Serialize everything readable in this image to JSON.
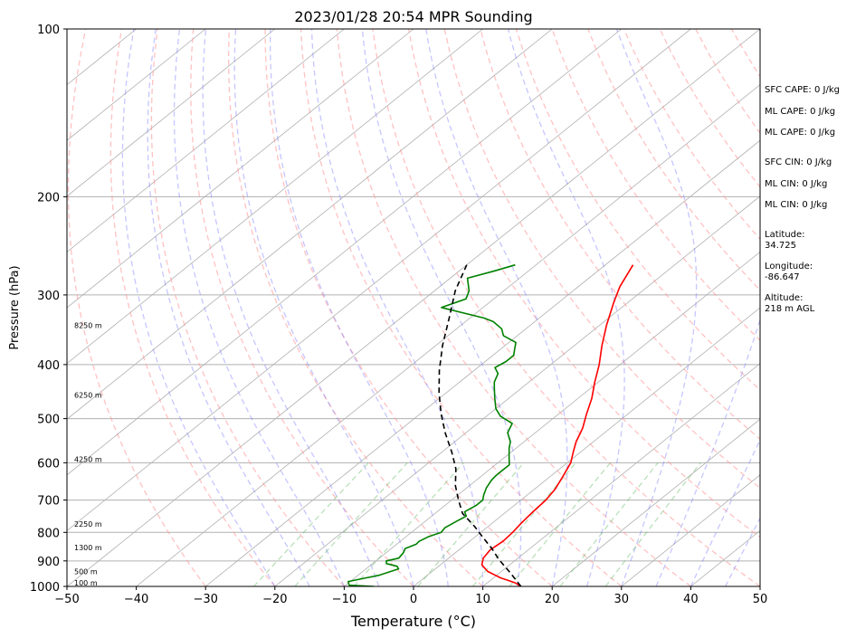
{
  "chart_data": {
    "type": "line",
    "title": "2023/01/28 20:54 MPR Sounding",
    "xlabel": "Temperature (°C)",
    "ylabel": "Pressure (hPa)",
    "xlim": [
      -50,
      50
    ],
    "ylim": [
      1000,
      100
    ],
    "y_scale": "log",
    "grid": true,
    "x_ticks": [
      "−50",
      "−40",
      "−30",
      "−20",
      "−10",
      "0",
      "10",
      "20",
      "30",
      "40",
      "50"
    ],
    "y_ticks": [
      {
        "p": 100,
        "label": "100"
      },
      {
        "p": 200,
        "label": "200"
      },
      {
        "p": 300,
        "label": "300"
      },
      {
        "p": 400,
        "label": "400"
      },
      {
        "p": 500,
        "label": "500"
      },
      {
        "p": 600,
        "label": "600"
      },
      {
        "p": 700,
        "label": "700"
      },
      {
        "p": 800,
        "label": "800"
      },
      {
        "p": 900,
        "label": "900"
      },
      {
        "p": 1000,
        "label": "1000"
      }
    ],
    "height_labels": [
      {
        "p": 1000,
        "label": "100 m"
      },
      {
        "p": 955,
        "label": "500 m"
      },
      {
        "p": 865,
        "label": "1300 m"
      },
      {
        "p": 785,
        "label": "2250 m"
      },
      {
        "p": 600,
        "label": "4250 m"
      },
      {
        "p": 460,
        "label": "6250 m"
      },
      {
        "p": 345,
        "label": "8250 m"
      }
    ],
    "series": [
      {
        "color": "#ff0000",
        "style": "solid",
        "points": [
          [
            15.5,
            1000
          ],
          [
            14,
            985
          ],
          [
            11,
            965
          ],
          [
            8,
            940
          ],
          [
            6,
            915
          ],
          [
            5,
            890
          ],
          [
            4.5,
            860
          ],
          [
            4.8,
            830
          ],
          [
            4.6,
            800
          ],
          [
            4.2,
            770
          ],
          [
            3.9,
            740
          ],
          [
            3.6,
            700
          ],
          [
            3,
            670
          ],
          [
            2,
            640
          ],
          [
            0.5,
            600
          ],
          [
            -1,
            575
          ],
          [
            -2.5,
            550
          ],
          [
            -4,
            520
          ],
          [
            -6,
            490
          ],
          [
            -8,
            460
          ],
          [
            -10.5,
            430
          ],
          [
            -13,
            400
          ],
          [
            -16,
            370
          ],
          [
            -19,
            340
          ],
          [
            -22,
            310
          ],
          [
            -24,
            290
          ],
          [
            -26,
            265
          ]
        ]
      },
      {
        "color": "#008000",
        "style": "solid",
        "points": [
          [
            -5.7,
            1000
          ],
          [
            -9.5,
            995
          ],
          [
            -10.3,
            980
          ],
          [
            -9,
            970
          ],
          [
            -7,
            955
          ],
          [
            -5.3,
            930
          ],
          [
            -6,
            920
          ],
          [
            -8,
            910
          ],
          [
            -8.5,
            900
          ],
          [
            -7.2,
            890
          ],
          [
            -7.5,
            870
          ],
          [
            -8,
            855
          ],
          [
            -7.2,
            840
          ],
          [
            -7.3,
            830
          ],
          [
            -6.8,
            815
          ],
          [
            -5.7,
            800
          ],
          [
            -6,
            785
          ],
          [
            -5.5,
            765
          ],
          [
            -5,
            748
          ],
          [
            -6,
            735
          ],
          [
            -5.5,
            715
          ],
          [
            -5.5,
            700
          ],
          [
            -6.3,
            685
          ],
          [
            -7.2,
            665
          ],
          [
            -7.8,
            645
          ],
          [
            -8,
            632
          ],
          [
            -8,
            620
          ],
          [
            -8,
            605
          ],
          [
            -9.5,
            585
          ],
          [
            -11,
            565
          ],
          [
            -12,
            550
          ],
          [
            -14,
            530
          ],
          [
            -15,
            510
          ],
          [
            -18,
            495
          ],
          [
            -20,
            480
          ],
          [
            -22,
            460
          ],
          [
            -24,
            440
          ],
          [
            -25,
            430
          ],
          [
            -26,
            415
          ],
          [
            -27.5,
            405
          ],
          [
            -27,
            395
          ],
          [
            -27,
            385
          ],
          [
            -28,
            375
          ],
          [
            -29,
            365
          ],
          [
            -32,
            355
          ],
          [
            -33.5,
            345
          ],
          [
            -36,
            335
          ],
          [
            -38,
            330
          ],
          [
            -46,
            316
          ],
          [
            -44,
            305
          ],
          [
            -45,
            295
          ],
          [
            -47.5,
            280
          ],
          [
            -45,
            272
          ],
          [
            -43,
            265
          ]
        ]
      },
      {
        "color": "#000000",
        "style": "dashed",
        "points": [
          [
            15.5,
            1000
          ],
          [
            11.5,
            945
          ],
          [
            7.5,
            895
          ],
          [
            4.5,
            855
          ],
          [
            1.5,
            820
          ],
          [
            -2,
            780
          ],
          [
            -6,
            740
          ],
          [
            -9,
            700
          ],
          [
            -12,
            660
          ],
          [
            -15,
            615
          ],
          [
            -18.5,
            575
          ],
          [
            -23,
            530
          ],
          [
            -27,
            490
          ],
          [
            -31,
            450
          ],
          [
            -35,
            410
          ],
          [
            -39,
            370
          ],
          [
            -43,
            330
          ],
          [
            -47,
            295
          ],
          [
            -50,
            265
          ]
        ]
      }
    ]
  },
  "info": {
    "sfc_cape": "SFC CAPE: 0 J/kg",
    "ml_cape_1": "ML CAPE: 0 J/kg",
    "ml_cape_2": "ML CAPE: 0 J/kg",
    "sfc_cin": "SFC CIN: 0 J/kg",
    "ml_cin_1": "ML CIN: 0 J/kg",
    "ml_cin_2": "ML CIN: 0 J/kg",
    "lat_label": "Latitude:",
    "lat_value": "34.725",
    "lon_label": "Longitude:",
    "lon_value": "-86.647",
    "alt_label": "Altitude:",
    "alt_value": "218 m AGL"
  }
}
